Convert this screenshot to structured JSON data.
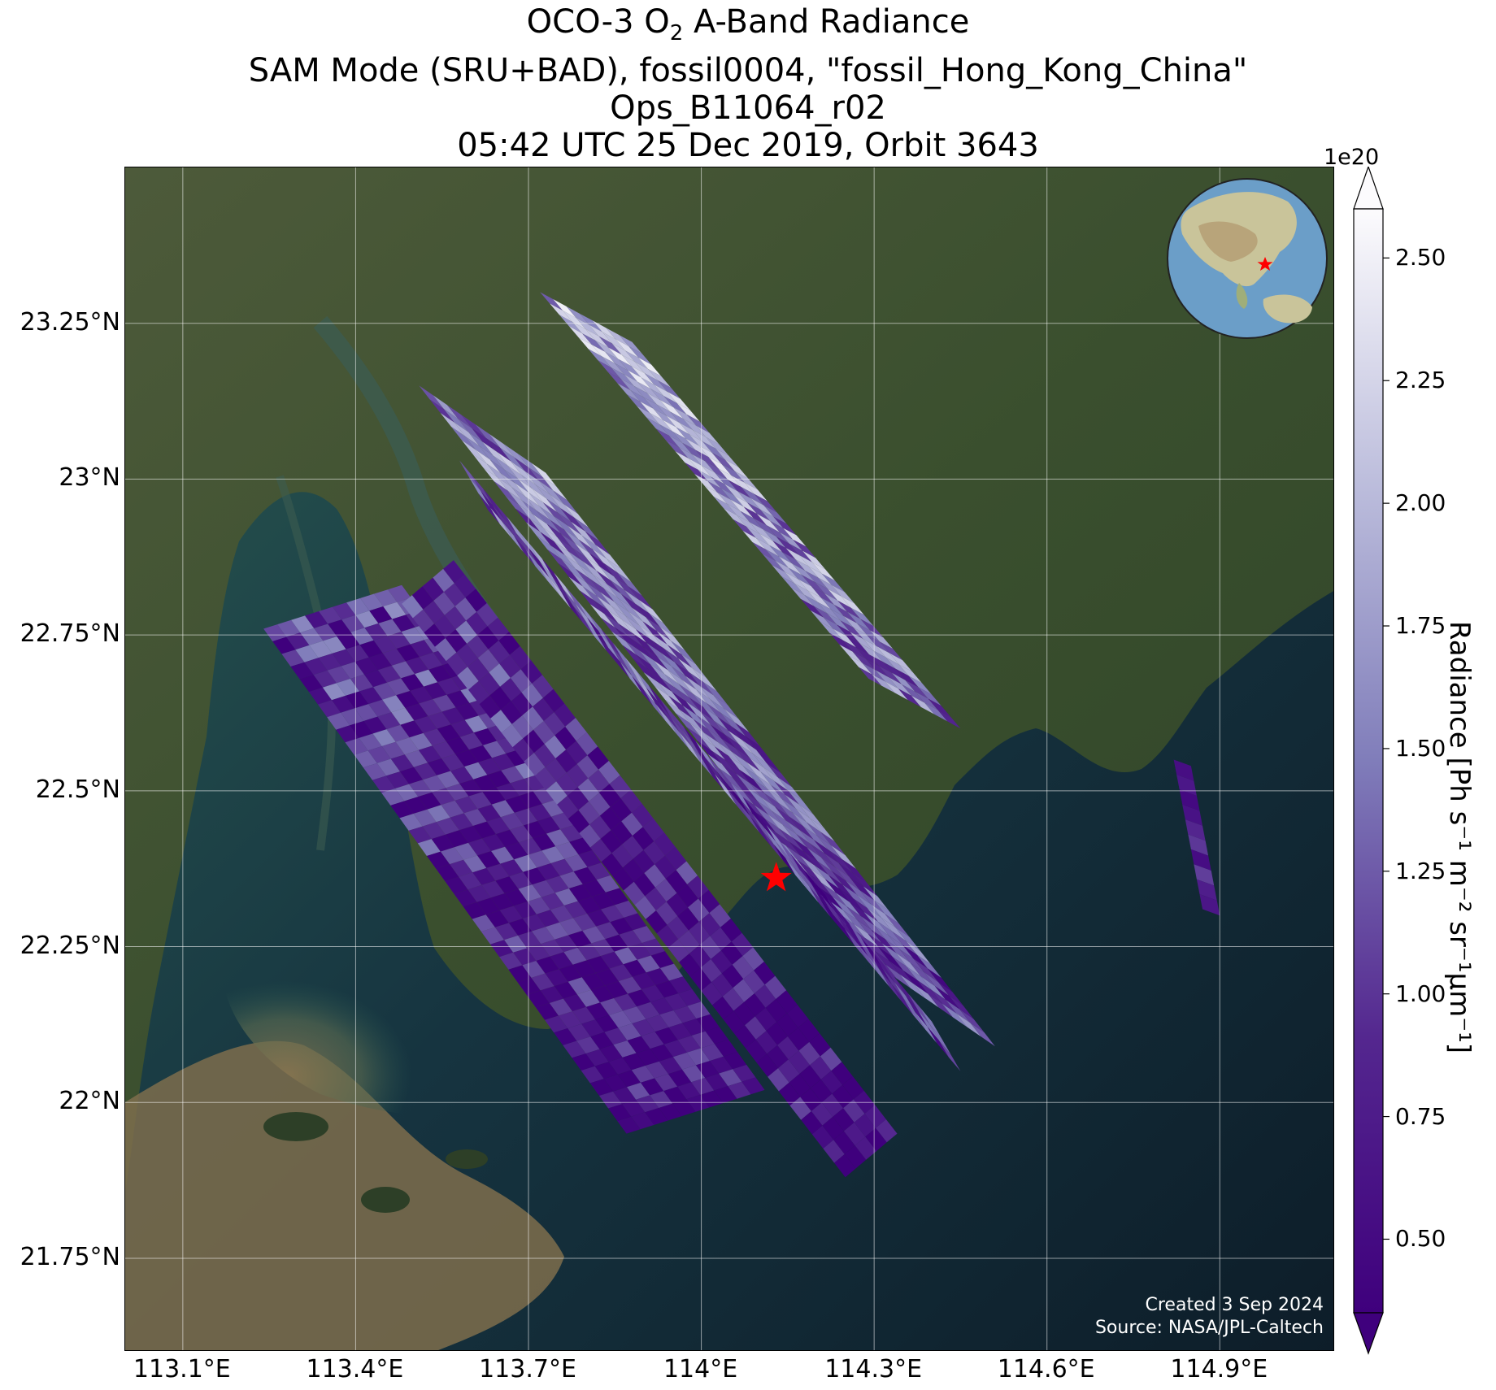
{
  "title": {
    "line1_pre": "OCO-3 O",
    "line1_sub": "2",
    "line1_post": " A-Band Radiance",
    "line2": "SAM Mode (SRU+BAD), fossil0004, \"fossil_Hong_Kong_China\"",
    "line3": "Ops_B11064_r02",
    "line4": "05:42 UTC 25 Dec 2019, Orbit 3643"
  },
  "map": {
    "lon_range": [
      113.0,
      115.1
    ],
    "lat_range": [
      21.6,
      23.5
    ],
    "lat_ticks": [
      "23.25°N",
      "23°N",
      "22.75°N",
      "22.5°N",
      "22.25°N",
      "22°N",
      "21.75°N"
    ],
    "lat_tick_values": [
      23.25,
      23.0,
      22.75,
      22.5,
      22.25,
      22.0,
      21.75
    ],
    "lon_ticks": [
      "113.1°E",
      "113.4°E",
      "113.7°E",
      "114°E",
      "114.3°E",
      "114.6°E",
      "114.9°E"
    ],
    "lon_tick_values": [
      113.1,
      113.4,
      113.7,
      114.0,
      114.3,
      114.6,
      114.9
    ],
    "gridlines": true,
    "target": {
      "lon": 114.13,
      "lat": 22.36,
      "marker": "red-star"
    },
    "background": "satellite imagery: land and Pearl River estuary (turbid brown/green) and South China Sea",
    "colors": {
      "land": "#3f5432",
      "sea": "#10212c",
      "turbid_water": "#7d6f4e",
      "star": "#ff0000"
    }
  },
  "inset_globe": {
    "marker": "red-star",
    "colors": {
      "ocean": "#6b9ec8",
      "land": "#c9c49a"
    }
  },
  "colorbar": {
    "multiplier": "1e20",
    "label": "Radiance [Ph s⁻¹ m⁻² sr⁻¹μm⁻¹]",
    "range": [
      0.35,
      2.6
    ],
    "extend": "both",
    "ticks": [
      "2.50",
      "2.25",
      "2.00",
      "1.75",
      "1.50",
      "1.25",
      "1.00",
      "0.75",
      "0.50"
    ],
    "tick_values": [
      2.5,
      2.25,
      2.0,
      1.75,
      1.5,
      1.25,
      1.0,
      0.75,
      0.5
    ],
    "colormap": "Purples_r",
    "colors": {
      "low": "#3f007d",
      "mid": "#807dba",
      "high": "#fcfbfd"
    }
  },
  "credits": {
    "created": "Created 3 Sep 2024",
    "source": "Source: NASA/JPL-Caltech"
  }
}
